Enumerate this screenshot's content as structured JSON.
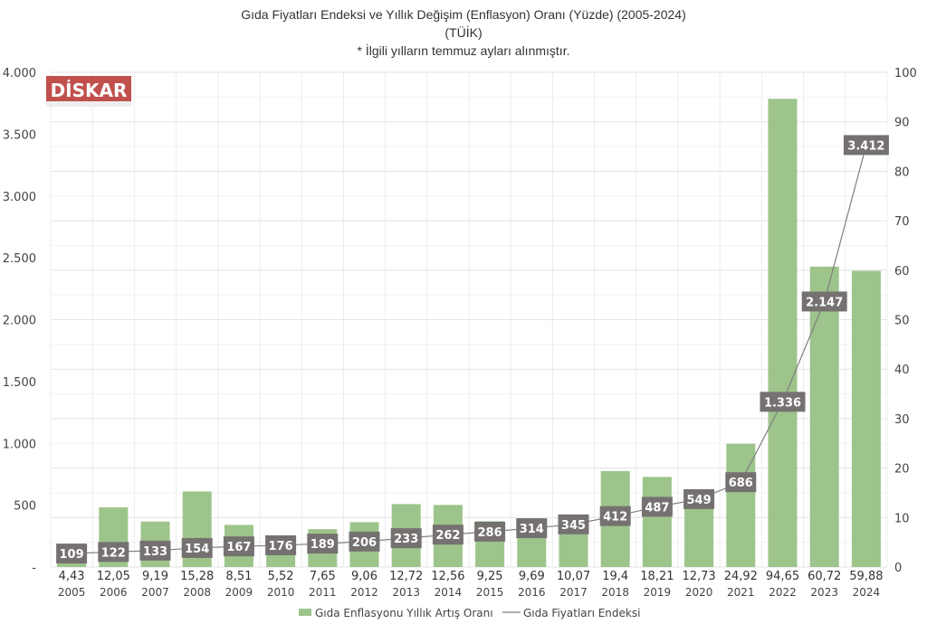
{
  "chart_data": {
    "type": "bar+line",
    "title": "Gıda Fiyatları Endeksi ve Yıllık Değişim (Enflasyon) Oranı (Yüzde) (2005-2024)",
    "subtitle": "(TÜİK)",
    "note": "* İlgili yılların temmuz ayları alınmıştır.",
    "logo": "DİSKAR",
    "categories": [
      "2005",
      "2006",
      "2007",
      "2008",
      "2009",
      "2010",
      "2011",
      "2012",
      "2013",
      "2014",
      "2015",
      "2016",
      "2017",
      "2018",
      "2019",
      "2020",
      "2021",
      "2022",
      "2023",
      "2024"
    ],
    "series": [
      {
        "name": "Gıda Enflasyonu Yıllık Artış Oranı",
        "type": "bar",
        "axis": "right",
        "color": "#9dc48b",
        "values": [
          4.43,
          12.05,
          9.19,
          15.28,
          8.51,
          5.52,
          7.65,
          9.06,
          12.72,
          12.56,
          9.25,
          9.69,
          10.07,
          19.4,
          18.21,
          12.73,
          24.92,
          94.65,
          60.72,
          59.88
        ],
        "labels": [
          "4,43",
          "12,05",
          "9,19",
          "15,28",
          "8,51",
          "5,52",
          "7,65",
          "9,06",
          "12,72",
          "12,56",
          "9,25",
          "9,69",
          "10,07",
          "19,4",
          "18,21",
          "12,73",
          "24,92",
          "94,65",
          "60,72",
          "59,88"
        ]
      },
      {
        "name": "Gıda Fiyatları Endeksi",
        "type": "line",
        "axis": "left",
        "color": "#7f7f7f",
        "values": [
          109,
          122,
          133,
          154,
          167,
          176,
          189,
          206,
          233,
          262,
          286,
          314,
          345,
          412,
          487,
          549,
          686,
          1336,
          2147,
          3412
        ],
        "labels": [
          "109",
          "122",
          "133",
          "154",
          "167",
          "176",
          "189",
          "206",
          "233",
          "262",
          "286",
          "314",
          "345",
          "412",
          "487",
          "549",
          "686",
          "1.336",
          "2.147",
          "3.412"
        ]
      }
    ],
    "left_axis": {
      "ylim": [
        0,
        4000
      ],
      "ticks": [
        "-",
        "500",
        "1.000",
        "1.500",
        "2.000",
        "2.500",
        "3.000",
        "3.500",
        "4.000"
      ]
    },
    "right_axis": {
      "ylim": [
        0,
        100
      ],
      "ticks": [
        "0",
        "10",
        "20",
        "30",
        "40",
        "50",
        "60",
        "70",
        "80",
        "90",
        "100"
      ]
    },
    "grid": true,
    "legend": "bottom"
  }
}
